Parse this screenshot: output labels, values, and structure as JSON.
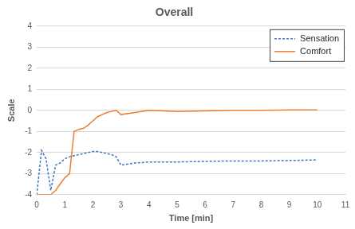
{
  "chart_data": {
    "type": "line",
    "title": "Overall",
    "x_label": "Time [min]",
    "y_label": "Scale",
    "x": [
      0,
      0.17,
      0.33,
      0.5,
      0.67,
      0.83,
      1.0,
      1.17,
      1.33,
      1.5,
      1.67,
      1.83,
      2.0,
      2.17,
      2.33,
      2.5,
      2.67,
      2.83,
      3.0,
      3.5,
      4,
      5,
      6,
      7,
      8,
      9,
      10
    ],
    "series": [
      {
        "name": "Sensation",
        "color": "#4472c4",
        "line_style": "dashed",
        "values": [
          -4,
          -1.9,
          -2.3,
          -3.8,
          -2.6,
          -2.5,
          -2.3,
          -2.2,
          -2.15,
          -2.1,
          -2.05,
          -2.0,
          -1.95,
          -1.95,
          -2.0,
          -2.05,
          -2.1,
          -2.2,
          -2.6,
          -2.5,
          -2.45,
          -2.45,
          -2.42,
          -2.4,
          -2.4,
          -2.38,
          -2.35
        ]
      },
      {
        "name": "Comfort",
        "color": "#ed7d31",
        "line_style": "solid",
        "values": [
          -4,
          -4,
          -4,
          -4,
          -3.8,
          -3.5,
          -3.2,
          -3.0,
          -1.0,
          -0.9,
          -0.85,
          -0.7,
          -0.5,
          -0.3,
          -0.2,
          -0.1,
          -0.05,
          0.0,
          -0.2,
          -0.1,
          0,
          -0.05,
          -0.03,
          0,
          0,
          0.02,
          0.02
        ]
      }
    ],
    "xlim": [
      0,
      11
    ],
    "xticks": [
      0,
      1,
      2,
      3,
      4,
      5,
      6,
      7,
      8,
      9,
      10,
      11
    ],
    "ylim": [
      -4,
      4
    ],
    "yticks": [
      -4,
      -3,
      -2,
      -1,
      0,
      1,
      2,
      3,
      4
    ],
    "grid": true,
    "legend": "upper right",
    "marker": "none"
  }
}
